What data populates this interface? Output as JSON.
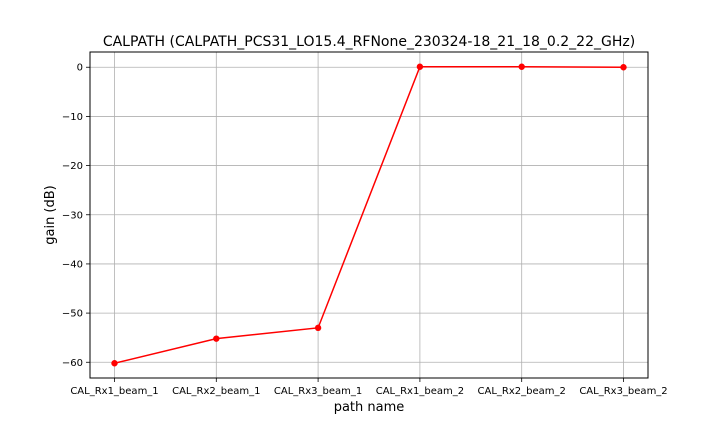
{
  "chart_data": {
    "type": "line",
    "title": "CALPATH (CALPATH_PCS31_LO15.4_RFNone_230324-18_21_18_0.2_22_GHz)",
    "xlabel": "path name",
    "ylabel": "gain (dB)",
    "categories": [
      "CAL_Rx1_beam_1",
      "CAL_Rx2_beam_1",
      "CAL_Rx3_beam_1",
      "CAL_Rx1_beam_2",
      "CAL_Rx2_beam_2",
      "CAL_Rx3_beam_2"
    ],
    "series": [
      {
        "values": [
          -60.2,
          -55.2,
          -53.0,
          0.1,
          0.1,
          0.0
        ],
        "color": "#ff0000"
      }
    ],
    "ylim": [
      -63.2,
      3.1
    ],
    "yticks": [
      0,
      -10,
      -20,
      -30,
      -40,
      -50,
      -60
    ],
    "ytick_labels": [
      "0",
      "−10",
      "−20",
      "−30",
      "−40",
      "−50",
      "−60"
    ],
    "grid": true
  }
}
